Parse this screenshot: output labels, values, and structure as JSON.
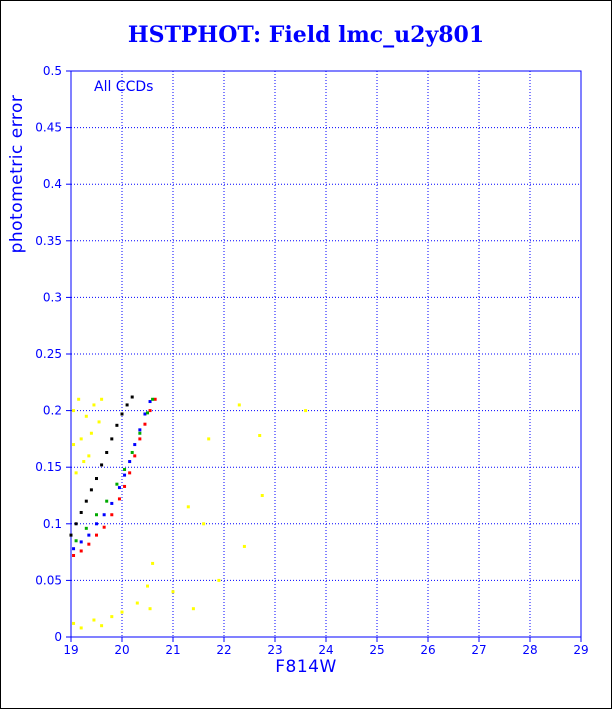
{
  "chart_data": {
    "type": "scatter",
    "title": "HSTPHOT: Field lmc_u2y801",
    "xlabel": "F814W",
    "ylabel": "photometric error",
    "annotation": "All CCDs",
    "xlim": [
      19,
      29
    ],
    "ylim": [
      0,
      0.5
    ],
    "x_ticks": [
      "19",
      "20",
      "21",
      "22",
      "23",
      "24",
      "25",
      "26",
      "27",
      "28",
      "29"
    ],
    "y_ticks": [
      "0",
      "0.05",
      "0.1",
      "0.15",
      "0.2",
      "0.25",
      "0.3",
      "0.35",
      "0.4",
      "0.45",
      "0.5"
    ],
    "grid": true,
    "series": [
      {
        "color": "#ff0000",
        "points": [
          [
            19.05,
            0.072
          ],
          [
            19.2,
            0.076
          ],
          [
            19.35,
            0.082
          ],
          [
            19.5,
            0.09
          ],
          [
            19.65,
            0.097
          ],
          [
            19.8,
            0.108
          ],
          [
            19.95,
            0.122
          ],
          [
            20.05,
            0.133
          ],
          [
            20.15,
            0.145
          ],
          [
            20.25,
            0.16
          ],
          [
            20.35,
            0.175
          ],
          [
            20.45,
            0.188
          ],
          [
            20.55,
            0.2
          ],
          [
            20.65,
            0.21
          ]
        ]
      },
      {
        "color": "#0000ff",
        "points": [
          [
            19.05,
            0.078
          ],
          [
            19.2,
            0.084
          ],
          [
            19.35,
            0.09
          ],
          [
            19.5,
            0.1
          ],
          [
            19.65,
            0.108
          ],
          [
            19.8,
            0.118
          ],
          [
            19.95,
            0.132
          ],
          [
            20.05,
            0.143
          ],
          [
            20.15,
            0.155
          ],
          [
            20.25,
            0.17
          ],
          [
            20.35,
            0.183
          ],
          [
            20.45,
            0.197
          ],
          [
            20.55,
            0.208
          ]
        ]
      },
      {
        "color": "#00aa00",
        "points": [
          [
            19.1,
            0.085
          ],
          [
            19.3,
            0.096
          ],
          [
            19.5,
            0.108
          ],
          [
            19.7,
            0.12
          ],
          [
            19.9,
            0.135
          ],
          [
            20.05,
            0.148
          ],
          [
            20.2,
            0.163
          ],
          [
            20.35,
            0.18
          ],
          [
            20.5,
            0.198
          ],
          [
            20.6,
            0.21
          ]
        ]
      },
      {
        "color": "#000000",
        "points": [
          [
            19.0,
            0.09
          ],
          [
            19.1,
            0.1
          ],
          [
            19.2,
            0.11
          ],
          [
            19.3,
            0.12
          ],
          [
            19.4,
            0.13
          ],
          [
            19.5,
            0.14
          ],
          [
            19.6,
            0.152
          ],
          [
            19.7,
            0.163
          ],
          [
            19.8,
            0.175
          ],
          [
            19.9,
            0.187
          ],
          [
            20.0,
            0.197
          ],
          [
            20.1,
            0.205
          ],
          [
            20.2,
            0.212
          ]
        ]
      },
      {
        "color": "#ffff00",
        "points": [
          [
            19.05,
            0.2
          ],
          [
            19.15,
            0.21
          ],
          [
            19.3,
            0.195
          ],
          [
            19.45,
            0.205
          ],
          [
            19.6,
            0.21
          ],
          [
            19.05,
            0.17
          ],
          [
            19.2,
            0.175
          ],
          [
            19.4,
            0.18
          ],
          [
            19.55,
            0.19
          ],
          [
            19.1,
            0.145
          ],
          [
            19.25,
            0.155
          ],
          [
            19.35,
            0.16
          ],
          [
            19.05,
            0.012
          ],
          [
            19.2,
            0.008
          ],
          [
            19.45,
            0.015
          ],
          [
            19.6,
            0.01
          ],
          [
            19.8,
            0.018
          ],
          [
            20.0,
            0.022
          ],
          [
            20.3,
            0.03
          ],
          [
            20.5,
            0.045
          ],
          [
            20.6,
            0.065
          ],
          [
            20.55,
            0.025
          ],
          [
            21.3,
            0.115
          ],
          [
            21.6,
            0.1
          ],
          [
            21.7,
            0.175
          ],
          [
            22.3,
            0.205
          ],
          [
            22.7,
            0.178
          ],
          [
            22.75,
            0.125
          ],
          [
            22.4,
            0.08
          ],
          [
            23.6,
            0.2
          ],
          [
            21.9,
            0.05
          ],
          [
            21.4,
            0.025
          ],
          [
            21.0,
            0.04
          ]
        ]
      }
    ]
  }
}
